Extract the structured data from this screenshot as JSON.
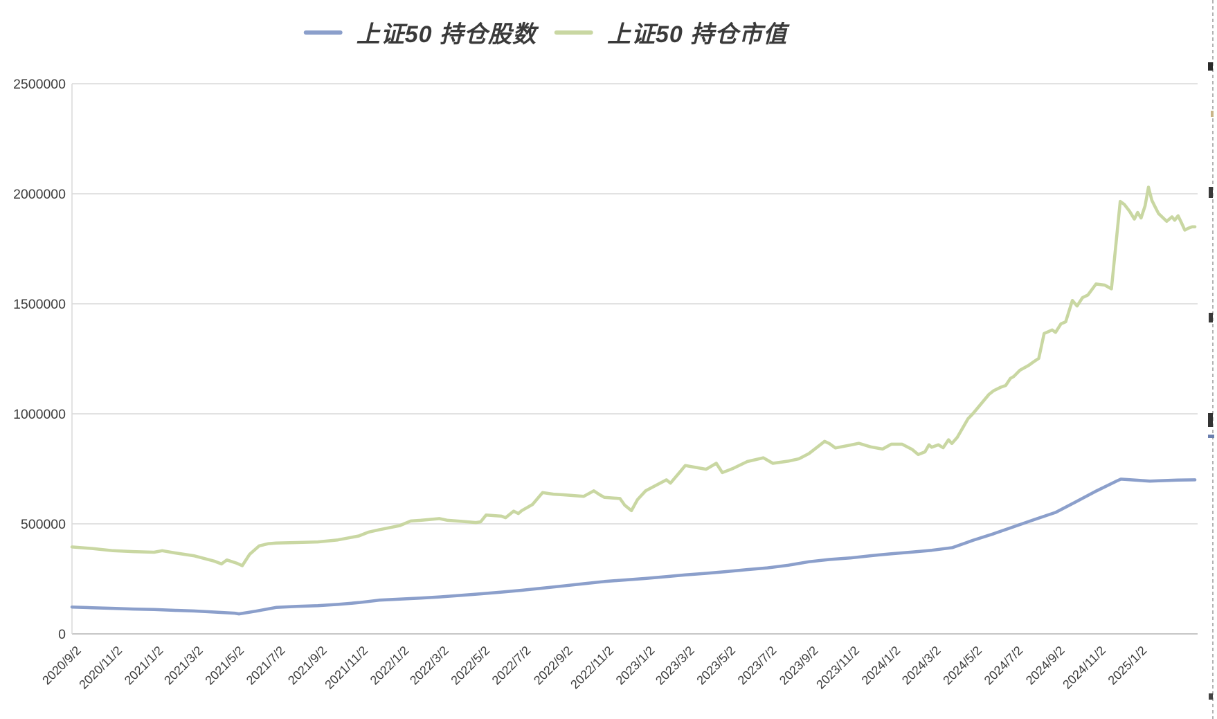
{
  "chart_data": {
    "type": "line",
    "title": "",
    "legend_position": "top",
    "grid": "horizontal",
    "background": "#ffffff",
    "colors": {
      "gridline": "#e2e2e2",
      "axis_line": "#c6c6c6",
      "plot_border": "#d9d9d9",
      "tick_text": "#3d3d3d",
      "legend_text": "#3a3a3a"
    },
    "y_axis": {
      "min": 0,
      "max": 2500000,
      "tick_step": 500000,
      "tick_labels": [
        "0",
        "500000",
        "1000000",
        "1500000",
        "2000000",
        "2500000"
      ]
    },
    "x_axis": {
      "start": "2020/9/2",
      "end": "2025/4/1",
      "tick_labels": [
        "2020/9/2",
        "2020/11/2",
        "2021/1/2",
        "2021/3/2",
        "2021/5/2",
        "2021/7/2",
        "2021/9/2",
        "2021/11/2",
        "2022/1/2",
        "2022/3/2",
        "2022/5/2",
        "2022/7/2",
        "2022/9/2",
        "2022/11/2",
        "2023/1/2",
        "2023/3/2",
        "2023/5/2",
        "2023/7/2",
        "2023/9/2",
        "2023/11/2",
        "2024/1/2",
        "2024/3/2",
        "2024/5/2",
        "2024/7/2",
        "2024/9/2",
        "2024/11/2",
        "2025/1/2"
      ]
    },
    "series": [
      {
        "name": "上证50 持仓股数",
        "color": "#8b9fcb",
        "points": [
          [
            "2020/9/2",
            122000
          ],
          [
            "2020/10/2",
            119000
          ],
          [
            "2020/11/2",
            116000
          ],
          [
            "2020/12/2",
            113000
          ],
          [
            "2021/1/2",
            111000
          ],
          [
            "2021/2/2",
            107000
          ],
          [
            "2021/3/2",
            104000
          ],
          [
            "2021/4/2",
            99000
          ],
          [
            "2021/5/2",
            94000
          ],
          [
            "2021/5/8",
            91000
          ],
          [
            "2021/6/2",
            103000
          ],
          [
            "2021/7/2",
            120000
          ],
          [
            "2021/8/2",
            125000
          ],
          [
            "2021/9/2",
            128000
          ],
          [
            "2021/10/2",
            134000
          ],
          [
            "2021/11/2",
            142000
          ],
          [
            "2021/12/2",
            153000
          ],
          [
            "2022/1/2",
            158000
          ],
          [
            "2022/2/2",
            163000
          ],
          [
            "2022/3/2",
            168000
          ],
          [
            "2022/4/2",
            175000
          ],
          [
            "2022/5/2",
            182000
          ],
          [
            "2022/6/2",
            190000
          ],
          [
            "2022/7/2",
            198000
          ],
          [
            "2022/8/2",
            208000
          ],
          [
            "2022/9/2",
            218000
          ],
          [
            "2022/10/2",
            228000
          ],
          [
            "2022/11/2",
            238000
          ],
          [
            "2022/12/2",
            245000
          ],
          [
            "2023/1/2",
            252000
          ],
          [
            "2023/2/2",
            260000
          ],
          [
            "2023/3/2",
            268000
          ],
          [
            "2023/4/2",
            275000
          ],
          [
            "2023/5/2",
            283000
          ],
          [
            "2023/6/2",
            292000
          ],
          [
            "2023/7/2",
            300000
          ],
          [
            "2023/8/2",
            312000
          ],
          [
            "2023/9/2",
            328000
          ],
          [
            "2023/10/2",
            338000
          ],
          [
            "2023/11/2",
            345000
          ],
          [
            "2023/12/2",
            355000
          ],
          [
            "2024/1/2",
            364000
          ],
          [
            "2024/2/2",
            372000
          ],
          [
            "2024/3/2",
            380000
          ],
          [
            "2024/4/2",
            392000
          ],
          [
            "2024/5/2",
            425000
          ],
          [
            "2024/6/2",
            455000
          ],
          [
            "2024/7/2",
            487000
          ],
          [
            "2024/8/2",
            520000
          ],
          [
            "2024/9/2",
            552000
          ],
          [
            "2024/10/2",
            600000
          ],
          [
            "2024/11/2",
            650000
          ],
          [
            "2024/12/2",
            695000
          ],
          [
            "2024/12/8",
            703000
          ],
          [
            "2025/1/2",
            698000
          ],
          [
            "2025/1/20",
            694000
          ],
          [
            "2025/2/2",
            696000
          ],
          [
            "2025/3/2",
            699000
          ],
          [
            "2025/3/28",
            700000
          ]
        ]
      },
      {
        "name": "上证50 持仓市值",
        "color": "#c9d7a2",
        "points": [
          [
            "2020/9/2",
            395000
          ],
          [
            "2020/10/2",
            388000
          ],
          [
            "2020/11/2",
            378000
          ],
          [
            "2020/12/2",
            374000
          ],
          [
            "2021/1/2",
            371000
          ],
          [
            "2021/1/14",
            378000
          ],
          [
            "2021/2/2",
            368000
          ],
          [
            "2021/3/2",
            355000
          ],
          [
            "2021/4/2",
            330000
          ],
          [
            "2021/4/12",
            318000
          ],
          [
            "2021/4/20",
            336000
          ],
          [
            "2021/5/4",
            322000
          ],
          [
            "2021/5/13",
            310000
          ],
          [
            "2021/5/24",
            362000
          ],
          [
            "2021/6/7",
            400000
          ],
          [
            "2021/6/21",
            410000
          ],
          [
            "2021/7/2",
            413000
          ],
          [
            "2021/8/2",
            415000
          ],
          [
            "2021/9/2",
            418000
          ],
          [
            "2021/10/2",
            427000
          ],
          [
            "2021/11/2",
            445000
          ],
          [
            "2021/11/16",
            462000
          ],
          [
            "2021/12/2",
            473000
          ],
          [
            "2021/12/20",
            484000
          ],
          [
            "2022/1/2",
            492000
          ],
          [
            "2022/1/18",
            513000
          ],
          [
            "2022/2/2",
            516000
          ],
          [
            "2022/3/2",
            524000
          ],
          [
            "2022/3/14",
            516000
          ],
          [
            "2022/4/2",
            512000
          ],
          [
            "2022/4/25",
            506000
          ],
          [
            "2022/5/2",
            509000
          ],
          [
            "2022/5/10",
            540000
          ],
          [
            "2022/6/2",
            535000
          ],
          [
            "2022/6/8",
            528000
          ],
          [
            "2022/6/20",
            558000
          ],
          [
            "2022/6/27",
            547000
          ],
          [
            "2022/7/2",
            560000
          ],
          [
            "2022/7/18",
            588000
          ],
          [
            "2022/8/2",
            642000
          ],
          [
            "2022/8/18",
            635000
          ],
          [
            "2022/9/2",
            632000
          ],
          [
            "2022/10/2",
            625000
          ],
          [
            "2022/10/17",
            650000
          ],
          [
            "2022/10/26",
            632000
          ],
          [
            "2022/11/2",
            620000
          ],
          [
            "2022/11/25",
            615000
          ],
          [
            "2022/12/2",
            585000
          ],
          [
            "2022/12/12",
            560000
          ],
          [
            "2022/12/21",
            610000
          ],
          [
            "2023/1/2",
            650000
          ],
          [
            "2023/2/2",
            700000
          ],
          [
            "2023/2/8",
            685000
          ],
          [
            "2023/2/22",
            736000
          ],
          [
            "2023/3/2",
            765000
          ],
          [
            "2023/3/15",
            758000
          ],
          [
            "2023/4/2",
            748000
          ],
          [
            "2023/4/17",
            775000
          ],
          [
            "2023/4/26",
            733000
          ],
          [
            "2023/5/2",
            740000
          ],
          [
            "2023/5/12",
            752000
          ],
          [
            "2023/6/2",
            783000
          ],
          [
            "2023/6/26",
            800000
          ],
          [
            "2023/7/10",
            775000
          ],
          [
            "2023/8/2",
            785000
          ],
          [
            "2023/8/18",
            796000
          ],
          [
            "2023/9/2",
            820000
          ],
          [
            "2023/9/25",
            875000
          ],
          [
            "2023/10/2",
            865000
          ],
          [
            "2023/10/11",
            845000
          ],
          [
            "2023/11/2",
            858000
          ],
          [
            "2023/11/15",
            866000
          ],
          [
            "2023/12/2",
            850000
          ],
          [
            "2023/12/20",
            840000
          ],
          [
            "2024/1/2",
            862000
          ],
          [
            "2024/1/18",
            862000
          ],
          [
            "2024/2/2",
            838000
          ],
          [
            "2024/2/11",
            815000
          ],
          [
            "2024/2/21",
            827000
          ],
          [
            "2024/2/27",
            859000
          ],
          [
            "2024/3/2",
            848000
          ],
          [
            "2024/3/12",
            859000
          ],
          [
            "2024/3/19",
            846000
          ],
          [
            "2024/3/27",
            882000
          ],
          [
            "2024/4/1",
            865000
          ],
          [
            "2024/4/9",
            893000
          ],
          [
            "2024/4/25",
            978000
          ],
          [
            "2024/5/2",
            1000000
          ],
          [
            "2024/5/26",
            1088000
          ],
          [
            "2024/6/2",
            1105000
          ],
          [
            "2024/6/12",
            1120000
          ],
          [
            "2024/6/20",
            1129000
          ],
          [
            "2024/6/27",
            1161000
          ],
          [
            "2024/7/2",
            1170000
          ],
          [
            "2024/7/11",
            1198000
          ],
          [
            "2024/7/24",
            1220000
          ],
          [
            "2024/8/2",
            1240000
          ],
          [
            "2024/8/8",
            1252000
          ],
          [
            "2024/8/16",
            1365000
          ],
          [
            "2024/8/28",
            1381000
          ],
          [
            "2024/9/2",
            1370000
          ],
          [
            "2024/9/10",
            1409000
          ],
          [
            "2024/9/17",
            1418000
          ],
          [
            "2024/9/27",
            1515000
          ],
          [
            "2024/10/4",
            1490000
          ],
          [
            "2024/10/12",
            1528000
          ],
          [
            "2024/10/20",
            1540000
          ],
          [
            "2024/11/1",
            1590000
          ],
          [
            "2024/11/14",
            1585000
          ],
          [
            "2024/11/24",
            1568000
          ],
          [
            "2024/12/1",
            1780000
          ],
          [
            "2024/12/7",
            1965000
          ],
          [
            "2024/12/13",
            1952000
          ],
          [
            "2024/12/21",
            1920000
          ],
          [
            "2024/12/28",
            1885000
          ],
          [
            "2025/1/2",
            1915000
          ],
          [
            "2025/1/7",
            1890000
          ],
          [
            "2025/1/13",
            1945000
          ],
          [
            "2025/1/18",
            2030000
          ],
          [
            "2025/1/23",
            1970000
          ],
          [
            "2025/1/28",
            1940000
          ],
          [
            "2025/2/2",
            1910000
          ],
          [
            "2025/2/14",
            1875000
          ],
          [
            "2025/2/22",
            1895000
          ],
          [
            "2025/2/26",
            1880000
          ],
          [
            "2025/3/3",
            1900000
          ],
          [
            "2025/3/8",
            1868000
          ],
          [
            "2025/3/13",
            1835000
          ],
          [
            "2025/3/18",
            1843000
          ],
          [
            "2025/3/24",
            1850000
          ],
          [
            "2025/3/28",
            1850000
          ]
        ]
      }
    ]
  }
}
